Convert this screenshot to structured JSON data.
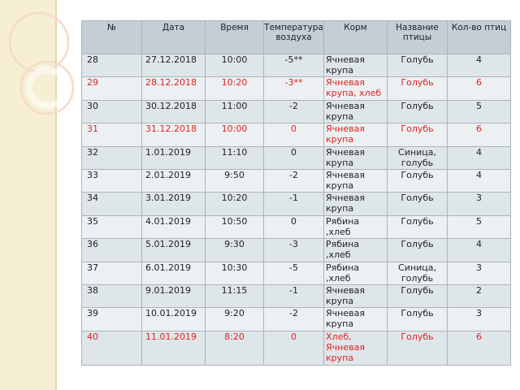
{
  "headers": {
    "num": "№",
    "date": "Дата",
    "time": "Время",
    "temp": "Температура воздуха",
    "feed": "Корм",
    "bird": "Название птицы",
    "count": "Кол-во птиц"
  },
  "rows": [
    {
      "num": "28",
      "date": "27.12.2018",
      "time": "10:00",
      "temp": "-5**",
      "feed": "Ячневая крупа",
      "bird": "Голубь",
      "count": "4",
      "highlight": false
    },
    {
      "num": "29",
      "date": "28.12.2018",
      "time": "10:20",
      "temp": "-3**",
      "feed": "Ячневая крупа, хлеб",
      "bird": "Голубь",
      "count": "6",
      "highlight": true
    },
    {
      "num": "30",
      "date": "30.12.2018",
      "time": "11:00",
      "temp": "-2",
      "feed": "Ячневая крупа",
      "bird": "Голубь",
      "count": "5",
      "highlight": false
    },
    {
      "num": "31",
      "date": "31.12.2018",
      "time": "10:00",
      "temp": "0",
      "feed": "Ячневая крупа",
      "bird": "Голубь",
      "count": "6",
      "highlight": true
    },
    {
      "num": "32",
      "date": "1.01.2019",
      "time": "11:10",
      "temp": "0",
      "feed": "Ячневая крупа",
      "bird": "Синица, голубь",
      "count": "4",
      "highlight": false
    },
    {
      "num": "33",
      "date": "2.01.2019",
      "time": "9:50",
      "temp": "-2",
      "feed": "Ячневая крупа",
      "bird": "Голубь",
      "count": "4",
      "highlight": false
    },
    {
      "num": "34",
      "date": "3.01.2019",
      "time": "10:20",
      "temp": "-1",
      "feed": "Ячневая крупа",
      "bird": "Голубь",
      "count": "3",
      "highlight": false
    },
    {
      "num": "35",
      "date": "4.01.2019",
      "time": "10:50",
      "temp": "0",
      "feed": "Рябина ,хлеб",
      "bird": "Голубь",
      "count": "5",
      "highlight": false
    },
    {
      "num": "36",
      "date": "5.01.2019",
      "time": "9:30",
      "temp": "-3",
      "feed": "Рябина ,хлеб",
      "bird": "Голубь",
      "count": "4",
      "highlight": false
    },
    {
      "num": "37",
      "date": "6.01.2019",
      "time": "10:30",
      "temp": "-5",
      "feed": "Рябина ,хлеб",
      "bird": "Синица, голубь",
      "count": "3",
      "highlight": false
    },
    {
      "num": "38",
      "date": "9.01.2019",
      "time": "11:15",
      "temp": "-1",
      "feed": "Ячневая крупа",
      "bird": "Голубь",
      "count": "2",
      "highlight": false
    },
    {
      "num": "39",
      "date": "10.01.2019",
      "time": "9:20",
      "temp": "-2",
      "feed": "Ячневая крупа",
      "bird": "Голубь",
      "count": "3",
      "highlight": false
    },
    {
      "num": "40",
      "date": "11.01.2019",
      "time": "8:20",
      "temp": "0",
      "feed": "Хлеб, Ячневая крупа",
      "bird": "Голубь",
      "count": "6",
      "highlight": true
    }
  ],
  "colors": {
    "highlight_text": "#e0231f",
    "row_odd": "#dfe6ea",
    "row_even": "#ecf0f2",
    "header": "#c3ced6",
    "left_strip": "#f6efd3"
  }
}
